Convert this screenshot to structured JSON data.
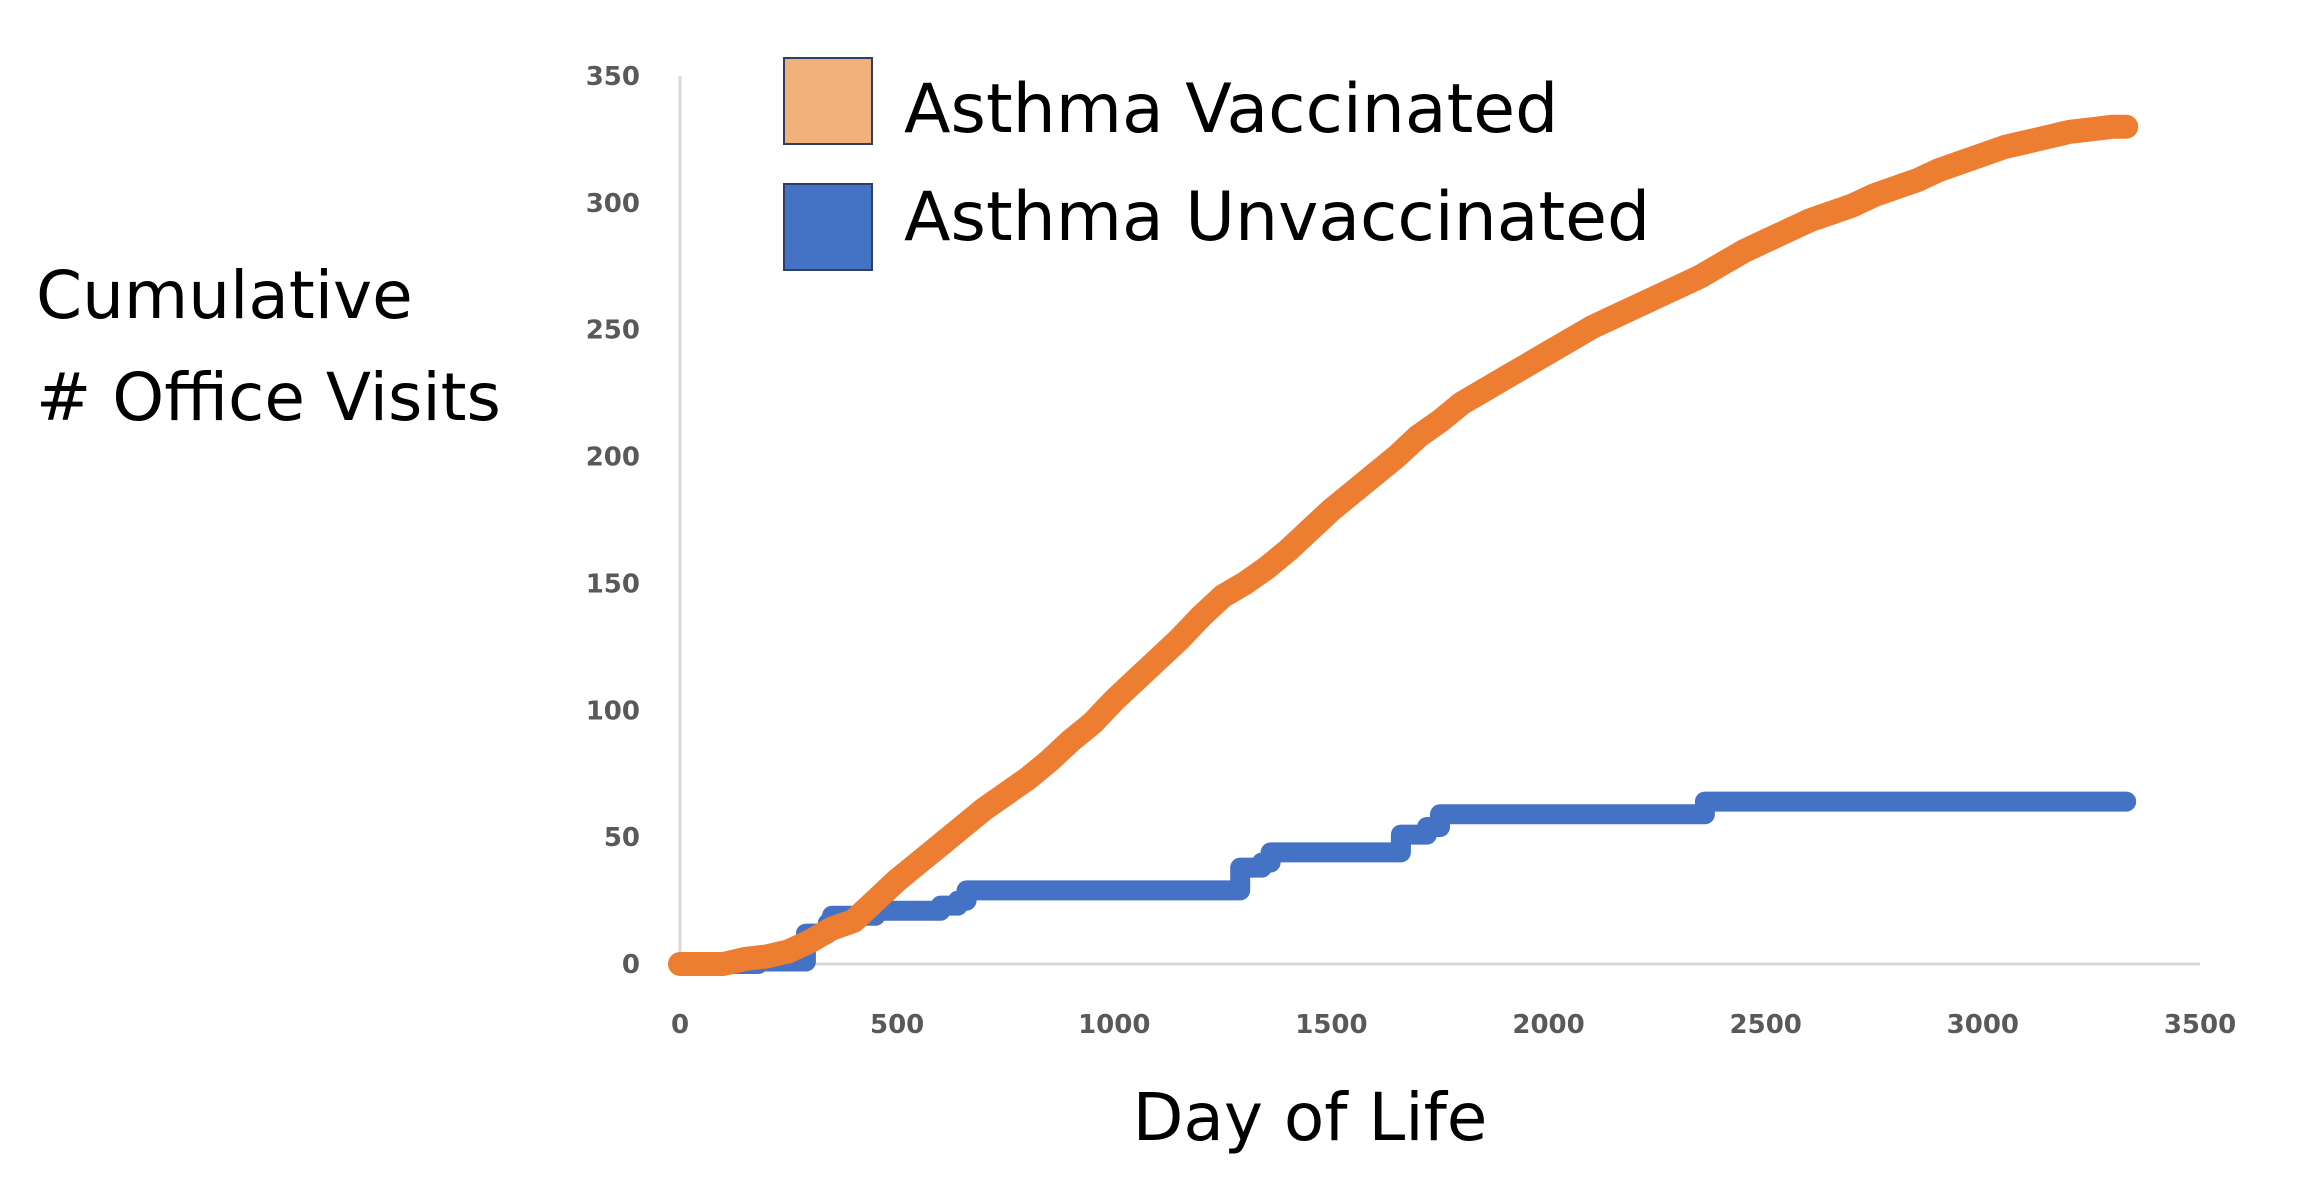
{
  "chart_data": {
    "type": "line",
    "title": "",
    "xlabel": "Day of Life",
    "ylabel_lines": [
      "Cumulative",
      "# Office Visits"
    ],
    "xlim": [
      0,
      3500
    ],
    "ylim": [
      0,
      350
    ],
    "x_ticks": [
      0,
      500,
      1000,
      1500,
      2000,
      2500,
      3000,
      3500
    ],
    "y_ticks": [
      0,
      50,
      100,
      150,
      200,
      250,
      300,
      350
    ],
    "grid": false,
    "legend_position": "top-left",
    "series": [
      {
        "name": "Asthma Vaccinated",
        "color": "#ED7D31",
        "legend_swatch_color": "#F0B27A",
        "step": false,
        "points": [
          [
            0,
            0
          ],
          [
            100,
            0
          ],
          [
            150,
            2
          ],
          [
            200,
            3
          ],
          [
            250,
            5
          ],
          [
            300,
            9
          ],
          [
            350,
            14
          ],
          [
            400,
            17
          ],
          [
            450,
            25
          ],
          [
            500,
            33
          ],
          [
            550,
            40
          ],
          [
            600,
            47
          ],
          [
            650,
            54
          ],
          [
            700,
            61
          ],
          [
            750,
            67
          ],
          [
            800,
            73
          ],
          [
            850,
            80
          ],
          [
            900,
            88
          ],
          [
            950,
            95
          ],
          [
            1000,
            104
          ],
          [
            1050,
            112
          ],
          [
            1100,
            120
          ],
          [
            1150,
            128
          ],
          [
            1200,
            137
          ],
          [
            1250,
            145
          ],
          [
            1300,
            150
          ],
          [
            1350,
            156
          ],
          [
            1400,
            163
          ],
          [
            1450,
            171
          ],
          [
            1500,
            179
          ],
          [
            1550,
            186
          ],
          [
            1600,
            193
          ],
          [
            1650,
            200
          ],
          [
            1700,
            208
          ],
          [
            1750,
            214
          ],
          [
            1800,
            221
          ],
          [
            1850,
            226
          ],
          [
            1900,
            231
          ],
          [
            1950,
            236
          ],
          [
            2000,
            241
          ],
          [
            2050,
            246
          ],
          [
            2100,
            251
          ],
          [
            2150,
            255
          ],
          [
            2200,
            259
          ],
          [
            2250,
            263
          ],
          [
            2300,
            267
          ],
          [
            2350,
            271
          ],
          [
            2400,
            276
          ],
          [
            2450,
            281
          ],
          [
            2500,
            285
          ],
          [
            2550,
            289
          ],
          [
            2600,
            293
          ],
          [
            2650,
            296
          ],
          [
            2700,
            299
          ],
          [
            2750,
            303
          ],
          [
            2800,
            306
          ],
          [
            2850,
            309
          ],
          [
            2900,
            313
          ],
          [
            2950,
            316
          ],
          [
            3000,
            319
          ],
          [
            3050,
            322
          ],
          [
            3100,
            324
          ],
          [
            3150,
            326
          ],
          [
            3200,
            328
          ],
          [
            3250,
            329
          ],
          [
            3300,
            330
          ],
          [
            3330,
            330
          ]
        ]
      },
      {
        "name": "Asthma Unvaccinated",
        "color": "#4472C4",
        "legend_swatch_color": "#4472C4",
        "step": true,
        "points": [
          [
            0,
            0
          ],
          [
            150,
            0
          ],
          [
            180,
            1
          ],
          [
            270,
            1
          ],
          [
            290,
            12
          ],
          [
            340,
            16
          ],
          [
            350,
            19
          ],
          [
            430,
            19
          ],
          [
            450,
            21
          ],
          [
            560,
            21
          ],
          [
            600,
            23
          ],
          [
            640,
            25
          ],
          [
            660,
            29
          ],
          [
            1270,
            29
          ],
          [
            1290,
            38
          ],
          [
            1340,
            40
          ],
          [
            1360,
            44
          ],
          [
            1630,
            44
          ],
          [
            1660,
            51
          ],
          [
            1720,
            54
          ],
          [
            1750,
            59
          ],
          [
            2340,
            59
          ],
          [
            2360,
            64
          ],
          [
            3330,
            64
          ]
        ]
      }
    ]
  }
}
